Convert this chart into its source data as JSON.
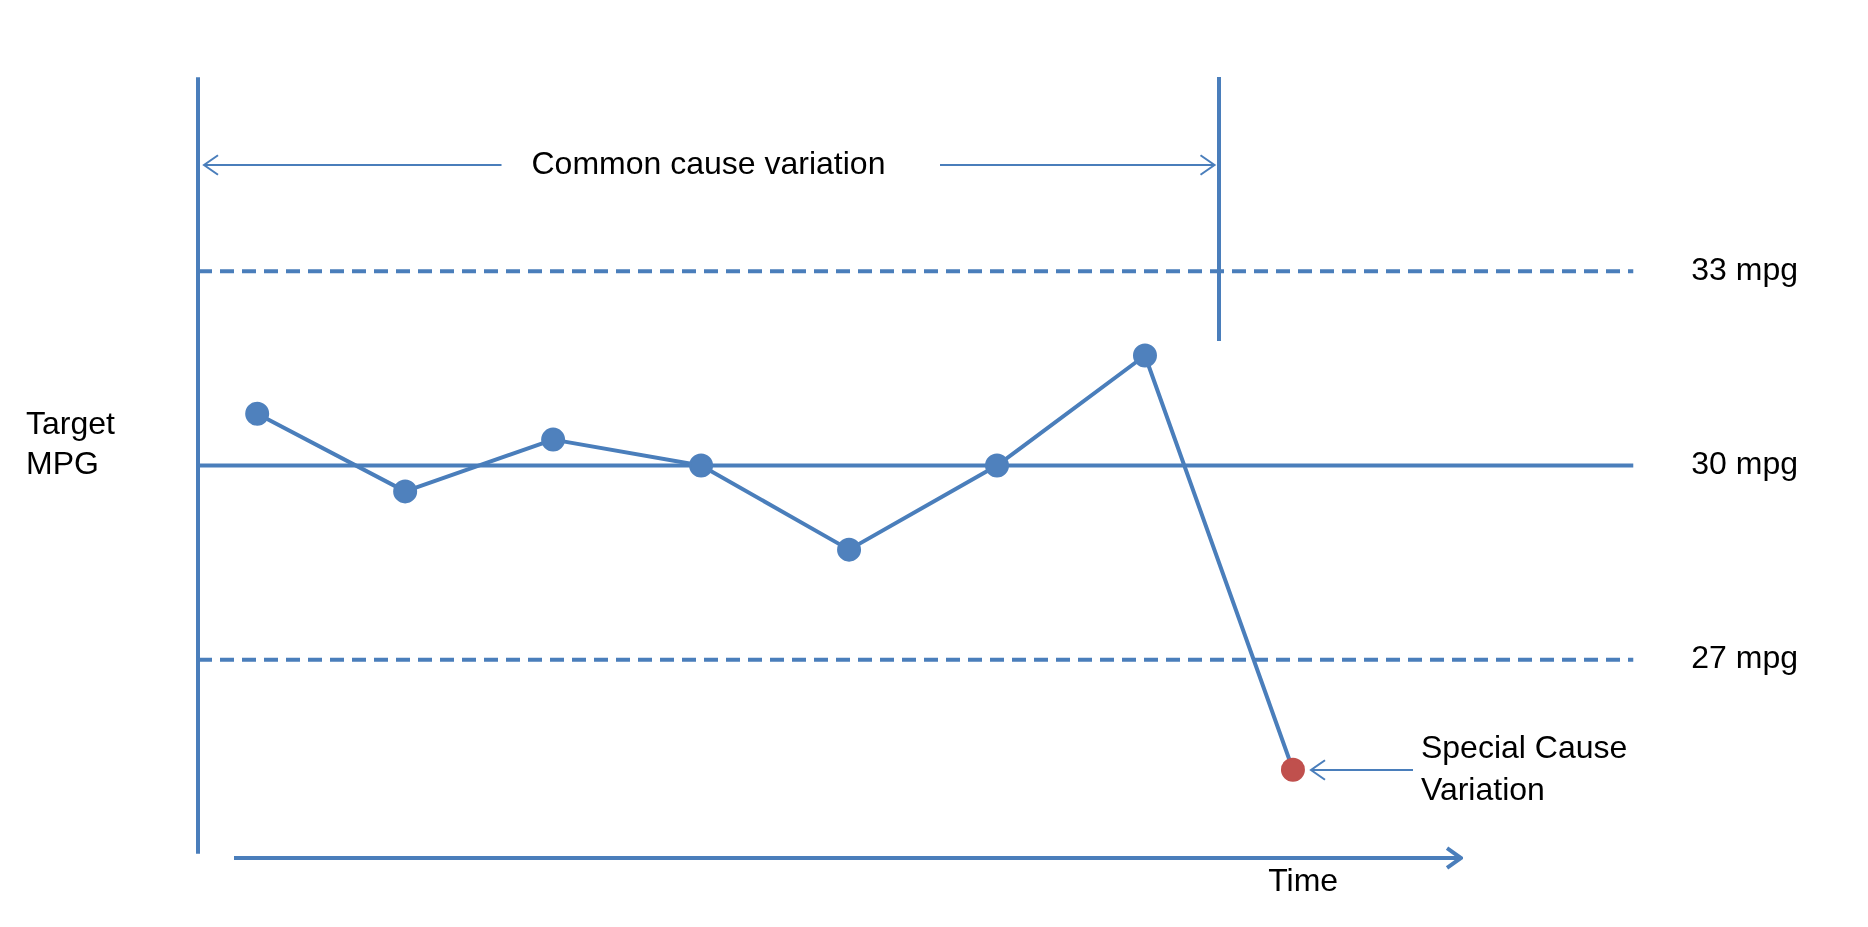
{
  "chart_data": {
    "type": "line",
    "ylabel": "Target MPG",
    "xlabel": "Time",
    "categories": [
      null,
      null,
      null,
      null,
      null,
      null,
      null,
      null
    ],
    "series": [
      {
        "color": "#4a7ebb",
        "colors": [
          "#4f81bd",
          "#4f81bd",
          "#4f81bd",
          "#4f81bd",
          "#4f81bd",
          "#4f81bd",
          "#4f81bd",
          "#c0504d"
        ],
        "values": [
          30.8,
          29.6,
          30.4,
          30,
          28.7,
          30,
          31.7,
          25.3
        ]
      }
    ],
    "ylim": [
      24,
      36
    ],
    "yticks": [
      {
        "value": 33,
        "label": "33 mpg"
      },
      {
        "value": 30,
        "label": "30 mpg"
      },
      {
        "value": 27,
        "label": "27 mpg"
      }
    ],
    "tick_labels": "y",
    "marker": "circle",
    "line_style": "solid",
    "ref_lines": [
      {
        "axis": "y",
        "value": 33,
        "line_style": "dashed",
        "color": "#4a7ebb"
      },
      {
        "axis": "y",
        "value": 30,
        "line_style": "solid",
        "color": "#4a7ebb"
      },
      {
        "axis": "y",
        "value": 27,
        "line_style": "dashed",
        "color": "#4a7ebb"
      }
    ],
    "annotations": [
      "Common cause variation",
      "Special Cause Variation"
    ]
  }
}
